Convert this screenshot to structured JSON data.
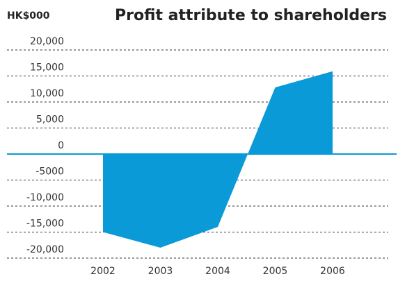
{
  "chart_data": {
    "type": "area",
    "title": "Profit attribute to shareholders",
    "y_label": "HK$000",
    "categories": [
      "2002",
      "2003",
      "2004",
      "2005",
      "2006"
    ],
    "values": [
      -15000,
      -18000,
      -14000,
      12800,
      15900
    ],
    "color": "#0a9ad8",
    "ylim": [
      -20000,
      20000
    ],
    "yticks": [
      {
        "value": 20000,
        "label": "20,000"
      },
      {
        "value": 15000,
        "label": "15,000"
      },
      {
        "value": 10000,
        "label": "10,000"
      },
      {
        "value": 5000,
        "label": "5,000"
      },
      0,
      {
        "value": -5000,
        "label": "-5000"
      },
      {
        "value": -10000,
        "label": "-10,000"
      },
      {
        "value": -15000,
        "label": "-15,000"
      },
      {
        "value": -20000,
        "label": "-20,000"
      }
    ],
    "grid": true
  }
}
